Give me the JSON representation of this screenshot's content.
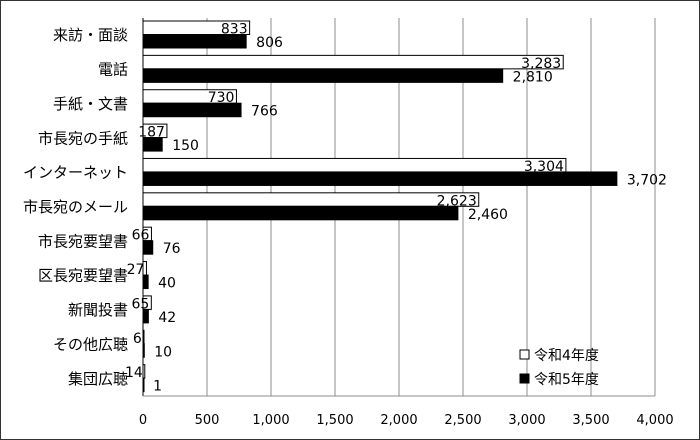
{
  "chart_data": {
    "type": "bar",
    "orientation": "horizontal",
    "title": "",
    "xlabel": "",
    "ylabel": "",
    "xlim": [
      0,
      4000
    ],
    "xticks": [
      0,
      500,
      1000,
      1500,
      2000,
      2500,
      3000,
      3500,
      4000
    ],
    "xtick_labels": [
      "0",
      "500",
      "1,000",
      "1,500",
      "2,000",
      "2,500",
      "3,000",
      "3,500",
      "4,000"
    ],
    "grid": true,
    "legend_position": "bottom-right",
    "categories": [
      "来訪・面談",
      "電話",
      "手紙・文書",
      "市長宛の手紙",
      "インターネット",
      "市長宛のメール",
      "市長宛要望書",
      "区長宛要望書",
      "新聞投書",
      "その他広聴",
      "集団広聴"
    ],
    "series": [
      {
        "name": "令和4年度",
        "color": "#ffffff",
        "values": [
          833,
          3283,
          730,
          187,
          3304,
          2623,
          66,
          27,
          65,
          6,
          14
        ],
        "labels": [
          "833",
          "3,283",
          "730",
          "187",
          "3,304",
          "2,623",
          "66",
          "27",
          "65",
          "6",
          "14"
        ]
      },
      {
        "name": "令和5年度",
        "color": "#000000",
        "values": [
          806,
          2810,
          766,
          150,
          3702,
          2460,
          76,
          40,
          42,
          10,
          1
        ],
        "labels": [
          "806",
          "2,810",
          "766",
          "150",
          "3,702",
          "2,460",
          "76",
          "40",
          "42",
          "10",
          "1"
        ]
      }
    ]
  }
}
